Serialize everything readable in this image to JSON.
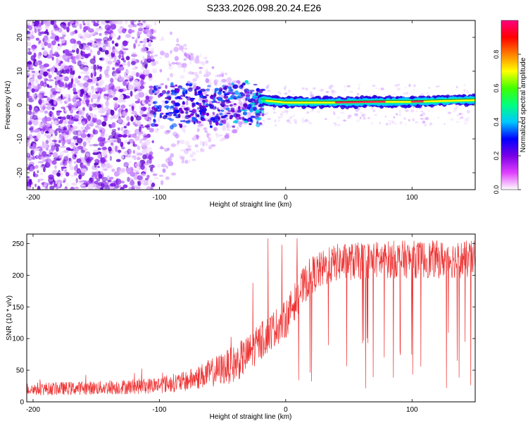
{
  "title": "S233.2026.098.20.24.E26",
  "chart_data": [
    {
      "type": "heatmap",
      "name": "spectrogram",
      "xlabel": "Height of straight line (km)",
      "ylabel": "Frequency (Hz)",
      "xlim": [
        -205,
        150
      ],
      "ylim": [
        -25,
        25
      ],
      "xticks": [
        -200,
        -100,
        0,
        100
      ],
      "yticks": [
        -20,
        -10,
        0,
        10,
        20
      ],
      "colorbar": {
        "label": "Normalized spectral amplitude",
        "range": [
          0,
          1
        ],
        "ticks": [
          "0.0",
          "0.2",
          "0.4",
          "0.6",
          "0.8"
        ],
        "tick_values": [
          0,
          0.2,
          0.4,
          0.6,
          0.8
        ],
        "colors": [
          "#ffffff",
          "#e040ff",
          "#7a00e6",
          "#0000ff",
          "#00c8ff",
          "#00ff80",
          "#40ff00",
          "#ffff00",
          "#ff8000",
          "#ff0000",
          "#ff0080"
        ]
      },
      "ridge": [
        {
          "x": -20,
          "f": 1.5
        },
        {
          "x": 0,
          "f": 0.8
        },
        {
          "x": 40,
          "f": 0.8
        },
        {
          "x": 75,
          "f": 1.0
        },
        {
          "x": 100,
          "f": 1.0
        },
        {
          "x": 150,
          "f": 1.5
        }
      ]
    },
    {
      "type": "line",
      "name": "snr",
      "xlabel": "Height of straight line (km)",
      "ylabel": "SNR (10 * v/v)",
      "xlim": [
        -205,
        150
      ],
      "ylim": [
        0,
        265
      ],
      "xticks": [
        -200,
        -100,
        0,
        100
      ],
      "yticks": [
        0,
        50,
        100,
        150,
        200,
        250
      ],
      "line_color": "#ee3333",
      "envelope": [
        {
          "x": -205,
          "y": 20
        },
        {
          "x": -150,
          "y": 22
        },
        {
          "x": -110,
          "y": 25
        },
        {
          "x": -80,
          "y": 32
        },
        {
          "x": -60,
          "y": 45
        },
        {
          "x": -40,
          "y": 60
        },
        {
          "x": -30,
          "y": 75
        },
        {
          "x": -20,
          "y": 95
        },
        {
          "x": -10,
          "y": 115
        },
        {
          "x": 0,
          "y": 130
        },
        {
          "x": 10,
          "y": 170
        },
        {
          "x": 20,
          "y": 200
        },
        {
          "x": 40,
          "y": 220
        },
        {
          "x": 80,
          "y": 225
        },
        {
          "x": 150,
          "y": 225
        }
      ],
      "spikes": [
        {
          "x": -14,
          "y": 258
        },
        {
          "x": 9,
          "y": 258
        },
        {
          "x": -26,
          "y": 188
        },
        {
          "x": -3,
          "y": 248
        }
      ]
    }
  ]
}
